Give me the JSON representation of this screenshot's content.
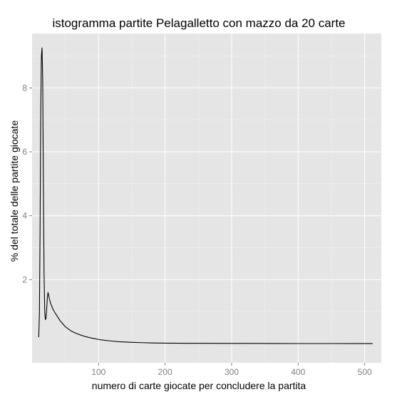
{
  "chart_data": {
    "type": "line",
    "title": "istogramma partite Pelagalletto con mazzo da 20 carte",
    "xlabel": "numero di carte giocate per concludere la partita",
    "ylabel": "% del totale delle partite giocate",
    "xlim": [
      0,
      525
    ],
    "ylim": [
      -0.6,
      9.7
    ],
    "xticks": [
      100,
      200,
      300,
      400,
      500
    ],
    "xtick_labels": [
      "100",
      "200",
      "300",
      "400",
      "500"
    ],
    "yticks": [
      2,
      4,
      6,
      8
    ],
    "ytick_labels": [
      "2",
      "4",
      "6",
      "8"
    ],
    "grid": true,
    "background": "#e5e5e5",
    "grid_major_color": "#ffffff",
    "grid_minor_color": "#f2f2f2",
    "line_color": "#000000",
    "series": [
      {
        "x": [
          10,
          11,
          12,
          13,
          14,
          15,
          16,
          17,
          18,
          19,
          20,
          21,
          22,
          23,
          24,
          25,
          26,
          28,
          30,
          32,
          35,
          38,
          42,
          46,
          50,
          55,
          60,
          65,
          70,
          80,
          90,
          100,
          110,
          120,
          130,
          140,
          150,
          165,
          180,
          200,
          230,
          260,
          290,
          320,
          360,
          400,
          450,
          500,
          512
        ],
        "y": [
          0.2,
          0.9,
          3.5,
          7.2,
          9.0,
          9.25,
          8.2,
          5.0,
          2.2,
          1.0,
          0.75,
          0.8,
          1.1,
          1.45,
          1.6,
          1.5,
          1.4,
          1.25,
          1.15,
          1.05,
          0.95,
          0.85,
          0.72,
          0.62,
          0.53,
          0.45,
          0.38,
          0.33,
          0.29,
          0.22,
          0.17,
          0.13,
          0.1,
          0.08,
          0.06,
          0.05,
          0.04,
          0.03,
          0.02,
          0.015,
          0.01,
          0.01,
          0.005,
          0.005,
          0.003,
          0.002,
          0.002,
          0.001,
          0.001
        ]
      }
    ]
  }
}
